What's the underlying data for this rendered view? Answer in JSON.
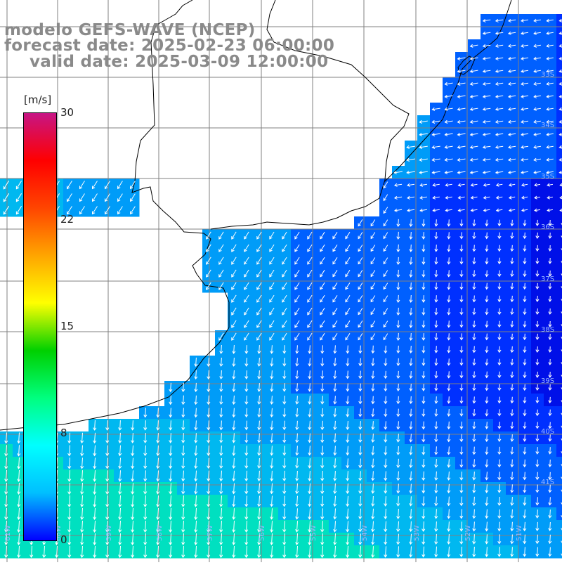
{
  "title": {
    "line1": "modelo GEFS-WAVE (NCEP)",
    "line2": "forecast date: 2025-02-23 06:00:00",
    "line3": "valid date: 2025-03-09 12:00:00"
  },
  "colorbar": {
    "unit_label": "[m/s]",
    "tick_labels": [
      "30",
      "22",
      "15",
      "8",
      "0"
    ],
    "colors": [
      "#0000ff",
      "#00bfff",
      "#00ffff",
      "#00ff7f",
      "#00d000",
      "#ffff00",
      "#ffa500",
      "#ff4500",
      "#ff0000",
      "#c71585"
    ]
  },
  "map": {
    "latitude_labels": [
      "33S",
      "34S",
      "35S",
      "36S",
      "37S",
      "38S",
      "39S",
      "40S",
      "41S"
    ],
    "longitude_labels": [
      "61W",
      "60W",
      "59W",
      "58W",
      "57W",
      "56W",
      "55W",
      "54W",
      "53W",
      "52W",
      "51W"
    ],
    "ocean_colors": {
      "strong": "#00e0c0",
      "medium": "#009cf8",
      "weak": "#0030ff",
      "calm": "#0010e8"
    },
    "arrow_color": "#ffffff",
    "grid_color": "#808080",
    "coast_color": "#000000"
  }
}
